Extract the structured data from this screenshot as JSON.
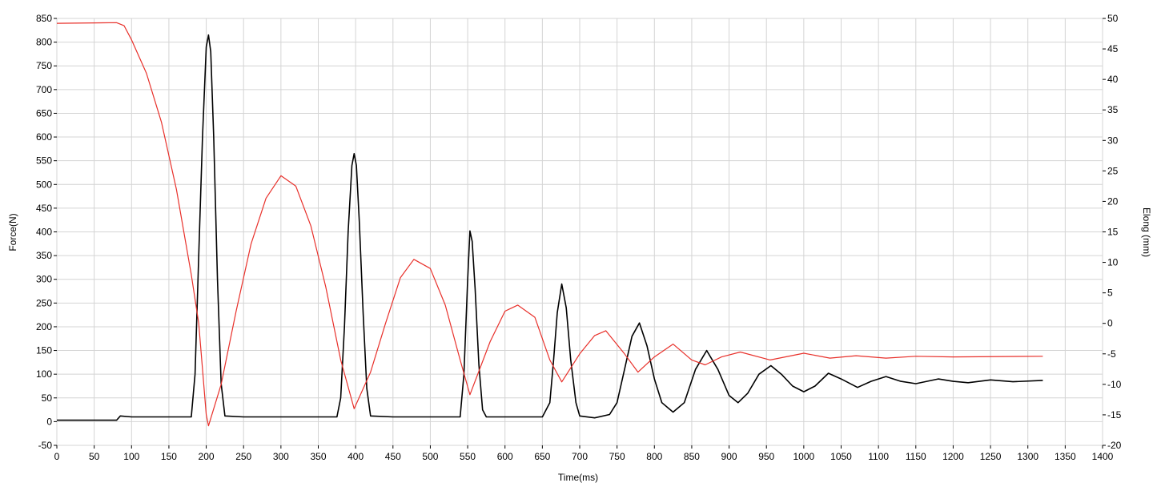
{
  "chart_data": {
    "type": "line",
    "xlabel": "Time(ms)",
    "ylabel": "Force(N)",
    "y2label": "Elong (mm)",
    "xlim": [
      0,
      1400
    ],
    "xticks": [
      0,
      50,
      100,
      150,
      200,
      250,
      300,
      350,
      400,
      450,
      500,
      550,
      600,
      650,
      700,
      750,
      800,
      850,
      900,
      950,
      1000,
      1050,
      1100,
      1150,
      1200,
      1250,
      1300,
      1350,
      1400
    ],
    "ylim": [
      -50,
      850
    ],
    "yticks": [
      -50,
      0,
      50,
      100,
      150,
      200,
      250,
      300,
      350,
      400,
      450,
      500,
      550,
      600,
      650,
      700,
      750,
      800,
      850
    ],
    "y2lim": [
      -20,
      50
    ],
    "y2ticks": [
      -20,
      -15,
      -10,
      -5,
      0,
      5,
      10,
      15,
      20,
      25,
      30,
      35,
      40,
      45,
      50
    ],
    "grid": true,
    "series": [
      {
        "color": "#000000",
        "x": [
          0,
          80,
          85,
          100,
          150,
          180,
          185,
          190,
          195,
          200,
          203,
          206,
          210,
          215,
          220,
          225,
          250,
          300,
          350,
          375,
          380,
          385,
          390,
          395,
          398,
          401,
          405,
          410,
          415,
          420,
          450,
          500,
          540,
          545,
          550,
          553,
          556,
          560,
          565,
          570,
          575,
          600,
          650,
          660,
          665,
          670,
          676,
          682,
          688,
          695,
          700,
          720,
          740,
          750,
          760,
          770,
          780,
          790,
          800,
          810,
          825,
          840,
          855,
          870,
          885,
          900,
          912,
          925,
          940,
          956,
          970,
          985,
          1000,
          1015,
          1033,
          1050,
          1072,
          1090,
          1110,
          1130,
          1150,
          1180,
          1200,
          1220,
          1250,
          1280,
          1320
        ],
        "values": [
          3,
          3,
          12,
          10,
          10,
          10,
          100,
          350,
          600,
          790,
          815,
          780,
          600,
          300,
          80,
          12,
          10,
          10,
          10,
          10,
          50,
          200,
          400,
          540,
          565,
          540,
          420,
          230,
          70,
          12,
          10,
          10,
          10,
          100,
          300,
          402,
          380,
          280,
          120,
          25,
          10,
          10,
          10,
          40,
          130,
          230,
          290,
          240,
          130,
          40,
          12,
          8,
          15,
          40,
          110,
          180,
          208,
          160,
          90,
          40,
          20,
          40,
          110,
          150,
          110,
          55,
          40,
          60,
          100,
          118,
          100,
          75,
          63,
          75,
          102,
          90,
          72,
          85,
          95,
          85,
          80,
          90,
          85,
          82,
          88,
          84,
          87
        ]
      },
      {
        "color": "#e8302a",
        "axis": "y2",
        "x": [
          0,
          80,
          90,
          100,
          120,
          140,
          160,
          180,
          190,
          200,
          203,
          220,
          240,
          260,
          280,
          300,
          320,
          340,
          360,
          380,
          398,
          420,
          440,
          460,
          478,
          500,
          520,
          540,
          553,
          580,
          600,
          617,
          640,
          660,
          676,
          700,
          720,
          735,
          760,
          778,
          800,
          825,
          850,
          868,
          890,
          915,
          955,
          1000,
          1035,
          1070,
          1110,
          1150,
          1200,
          1320
        ],
        "values": [
          49.2,
          49.3,
          48.8,
          46.5,
          41,
          33,
          22,
          8,
          0,
          -15,
          -16.8,
          -10,
          2,
          13,
          20.5,
          24.2,
          22.5,
          16,
          6,
          -6,
          -14,
          -8,
          0,
          7.5,
          10.5,
          9,
          3,
          -6,
          -11.7,
          -3,
          2,
          3,
          1,
          -6,
          -9.6,
          -5,
          -2,
          -1.2,
          -5,
          -8,
          -5.5,
          -3.4,
          -6,
          -6.8,
          -5.5,
          -4.7,
          -6,
          -4.9,
          -5.7,
          -5.3,
          -5.7,
          -5.4,
          -5.5,
          -5.4
        ]
      }
    ]
  }
}
